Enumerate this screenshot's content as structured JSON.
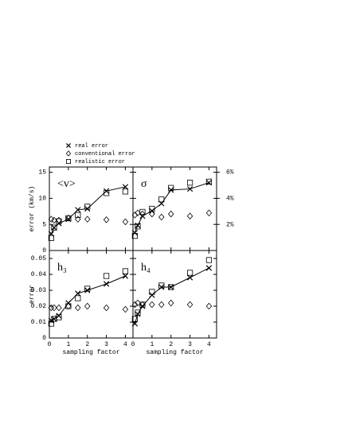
{
  "chart_data": [
    {
      "type": "scatter",
      "label": "<v>",
      "ylabel": "error (km/s)",
      "x": [
        0.1,
        0.25,
        0.5,
        1,
        1.5,
        2,
        3,
        4
      ],
      "xlim": [
        0,
        4.4
      ],
      "xticks": [
        0,
        1,
        2,
        3,
        4
      ],
      "show_xtick_labels": false,
      "ylim": [
        0,
        16
      ],
      "yticks": [
        0,
        5,
        10,
        15
      ],
      "show_ytick_labels": true,
      "series": [
        {
          "name": "real error",
          "marker": "cross",
          "line": true,
          "color": "#000",
          "values": [
            3.2,
            4.4,
            5.2,
            6.0,
            7.8,
            8.0,
            11.4,
            12.2
          ]
        },
        {
          "name": "conventional error",
          "marker": "diamond",
          "line": false,
          "color": "#000",
          "values": [
            6.0,
            5.8,
            5.8,
            6.2,
            6.0,
            6.0,
            5.9,
            5.5
          ]
        },
        {
          "name": "realistic error",
          "marker": "square",
          "line": false,
          "color": "#000",
          "values": [
            2.4,
            4.4,
            5.6,
            6.2,
            6.8,
            8.4,
            11.0,
            11.3
          ]
        }
      ]
    },
    {
      "type": "scatter",
      "label": "σ",
      "x": [
        0.1,
        0.25,
        0.5,
        1,
        1.5,
        2,
        3,
        4
      ],
      "xlim": [
        0,
        4.4
      ],
      "xticks": [
        0,
        1,
        2,
        3,
        4
      ],
      "show_xtick_labels": false,
      "ylim": [
        0,
        16
      ],
      "yticks": [
        0,
        5,
        10,
        15
      ],
      "show_ytick_labels": false,
      "y2lim": [
        0,
        6.4
      ],
      "y2ticks": [
        {
          "value": 2,
          "label": "2%"
        },
        {
          "value": 4,
          "label": "4%"
        },
        {
          "value": 6,
          "label": "6%"
        }
      ],
      "series": [
        {
          "marker": "cross",
          "line": true,
          "color": "#000",
          "values": [
            3.4,
            4.8,
            6.6,
            7.6,
            9.0,
            11.6,
            11.8,
            13.0
          ]
        },
        {
          "marker": "diamond",
          "line": false,
          "color": "#000",
          "values": [
            6.8,
            7.2,
            7.0,
            7.0,
            6.4,
            7.0,
            6.6,
            7.2
          ]
        },
        {
          "marker": "square",
          "line": false,
          "color": "#000",
          "values": [
            2.8,
            4.6,
            7.4,
            8.0,
            9.8,
            12.0,
            13.0,
            13.2
          ]
        }
      ]
    },
    {
      "type": "scatter",
      "label": "h₃",
      "ylabel": "error",
      "xlabel": "sampling factor",
      "x": [
        0.1,
        0.25,
        0.5,
        1,
        1.5,
        2,
        3,
        4
      ],
      "xlim": [
        0,
        4.4
      ],
      "xticks": [
        0,
        1,
        2,
        3,
        4
      ],
      "show_xtick_labels": true,
      "ylim": [
        0,
        0.055
      ],
      "yticks": [
        0,
        0.01,
        0.02,
        0.03,
        0.04,
        0.05
      ],
      "show_ytick_labels": true,
      "series": [
        {
          "marker": "cross",
          "line": true,
          "color": "#000",
          "values": [
            0.011,
            0.012,
            0.014,
            0.022,
            0.028,
            0.03,
            0.034,
            0.039
          ]
        },
        {
          "marker": "diamond",
          "line": false,
          "color": "#000",
          "values": [
            0.019,
            0.019,
            0.019,
            0.02,
            0.019,
            0.02,
            0.019,
            0.018
          ]
        },
        {
          "marker": "square",
          "line": false,
          "color": "#000",
          "values": [
            0.009,
            0.012,
            0.013,
            0.02,
            0.025,
            0.031,
            0.039,
            0.042
          ]
        }
      ]
    },
    {
      "type": "scatter",
      "label": "h₄",
      "xlabel": "sampling factor",
      "x": [
        0.1,
        0.25,
        0.5,
        1,
        1.5,
        2,
        3,
        4
      ],
      "xlim": [
        0,
        4.4
      ],
      "xticks": [
        0,
        1,
        2,
        3,
        4
      ],
      "show_xtick_labels": true,
      "ylim": [
        0,
        0.055
      ],
      "yticks": [
        0,
        0.01,
        0.02,
        0.03,
        0.04,
        0.05
      ],
      "show_ytick_labels": false,
      "series": [
        {
          "marker": "cross",
          "line": true,
          "color": "#000",
          "values": [
            0.009,
            0.015,
            0.02,
            0.027,
            0.032,
            0.032,
            0.038,
            0.044
          ]
        },
        {
          "marker": "diamond",
          "line": false,
          "color": "#000",
          "values": [
            0.021,
            0.022,
            0.021,
            0.021,
            0.021,
            0.022,
            0.021,
            0.02
          ]
        },
        {
          "marker": "square",
          "line": false,
          "color": "#000",
          "values": [
            0.012,
            0.016,
            0.021,
            0.029,
            0.033,
            0.032,
            0.041,
            0.049
          ]
        }
      ]
    }
  ]
}
